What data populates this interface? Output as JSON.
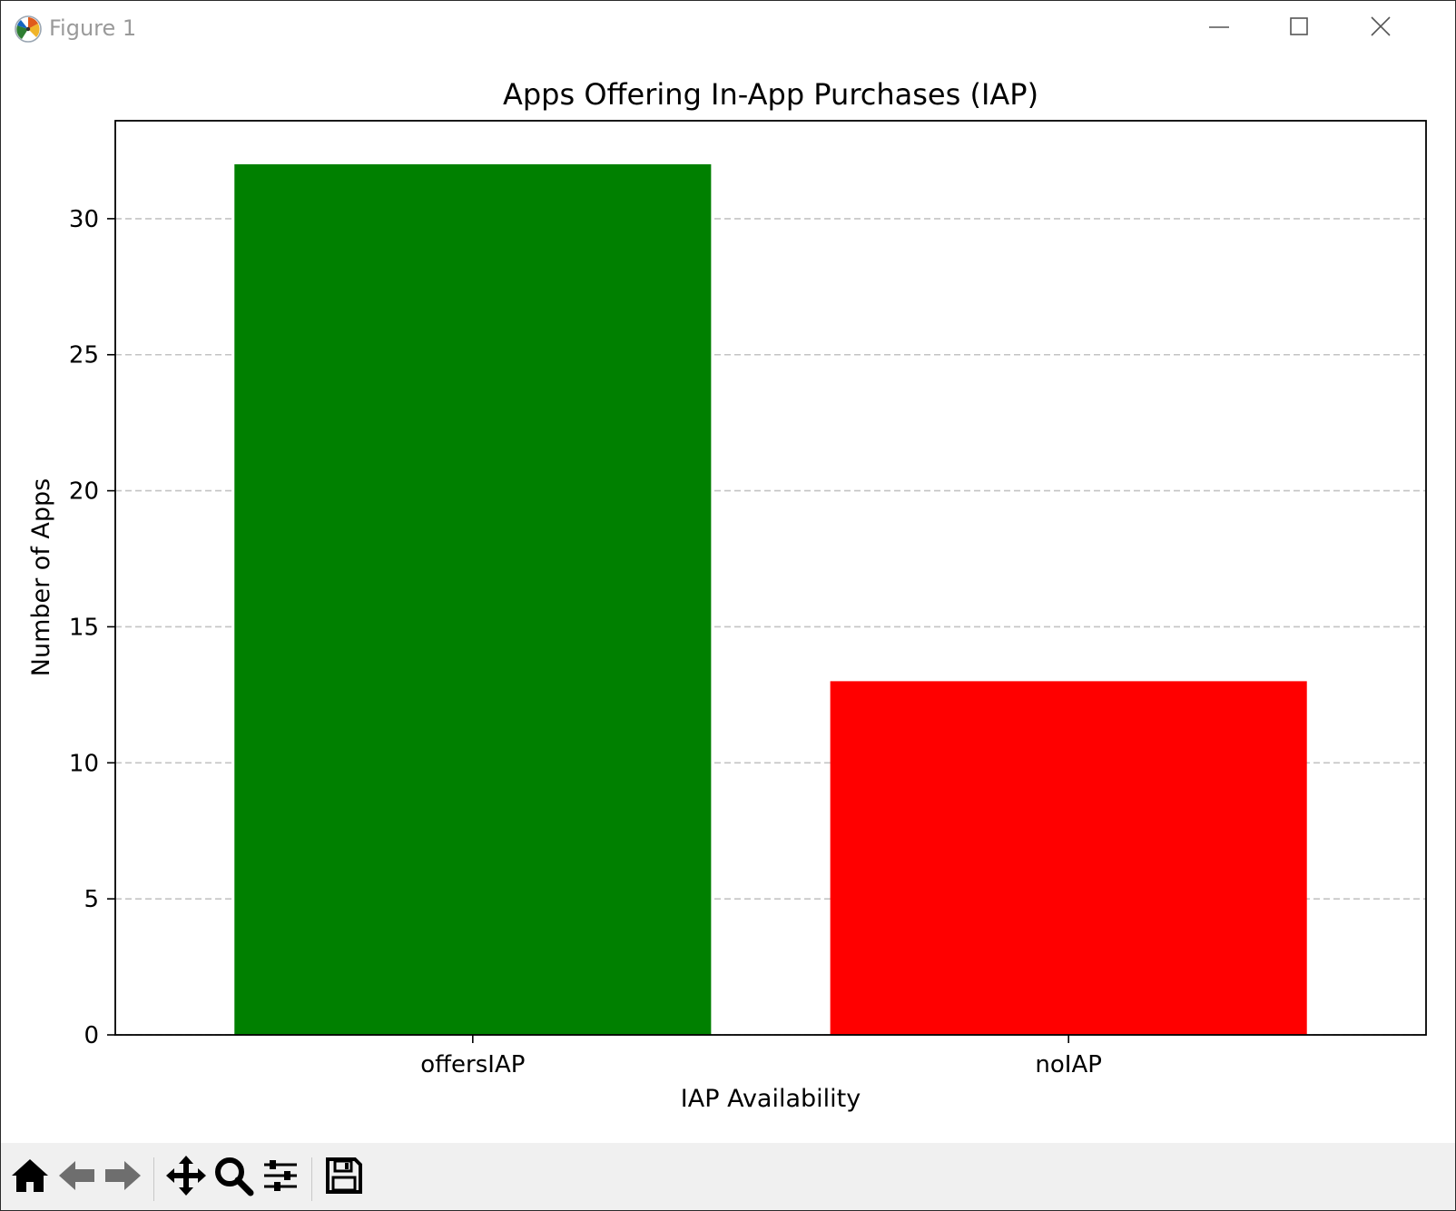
{
  "window": {
    "title": "Figure 1",
    "controls": [
      "minimize-icon",
      "maximize-icon",
      "close-icon"
    ]
  },
  "toolbar": {
    "tools": [
      "home-icon",
      "back-arrow-icon",
      "forward-arrow-icon",
      "pan-icon",
      "zoom-icon",
      "configure-subplots-icon",
      "save-icon"
    ]
  },
  "chart_data": {
    "type": "bar",
    "title": "Apps Offering In-App Purchases (IAP)",
    "xlabel": "IAP Availability",
    "ylabel": "Number of Apps",
    "categories": [
      "offersIAP",
      "noIAP"
    ],
    "values": [
      32,
      13
    ],
    "colors": [
      "#008000",
      "#ff0000"
    ],
    "ylim": [
      0,
      33.6
    ],
    "yticks": [
      0,
      5,
      10,
      15,
      20,
      25,
      30
    ],
    "grid": "y-axis dashed"
  }
}
